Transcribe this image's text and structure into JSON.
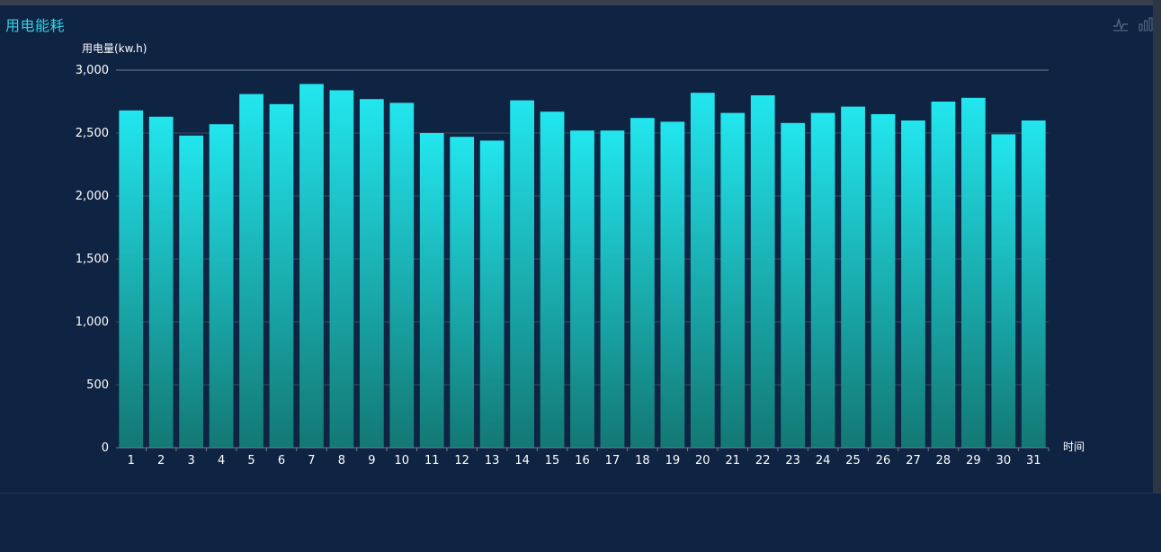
{
  "panel": {
    "title": "用电能耗"
  },
  "toolbox": {
    "line_icon": "line-chart-icon",
    "bar_icon": "bar-chart-icon"
  },
  "colors": {
    "background": "#0f2342",
    "title": "#2fd2e6",
    "bar_top": "#22e6ee",
    "bar_bottom": "#137874",
    "grid": "#3b4d61"
  },
  "chart_data": {
    "type": "bar",
    "ylabel": "用电量(kw.h)",
    "xlabel": "时间",
    "categories": [
      "1",
      "2",
      "3",
      "4",
      "5",
      "6",
      "7",
      "8",
      "9",
      "10",
      "11",
      "12",
      "13",
      "14",
      "15",
      "16",
      "17",
      "18",
      "19",
      "20",
      "21",
      "22",
      "23",
      "24",
      "25",
      "26",
      "27",
      "28",
      "29",
      "30",
      "31"
    ],
    "values": [
      2680,
      2630,
      2480,
      2570,
      2810,
      2730,
      2890,
      2840,
      2770,
      2740,
      2500,
      2470,
      2440,
      2760,
      2670,
      2520,
      2520,
      2620,
      2590,
      2820,
      2660,
      2800,
      2580,
      2660,
      2710,
      2650,
      2600,
      2750,
      2780,
      2490,
      2600
    ],
    "ylim": [
      0,
      3000
    ],
    "yticks": [
      0,
      500,
      1000,
      1500,
      2000,
      2500,
      3000
    ],
    "ytick_labels": [
      "0",
      "500",
      "1,000",
      "1,500",
      "2,000",
      "2,500",
      "3,000"
    ],
    "grid": true
  }
}
